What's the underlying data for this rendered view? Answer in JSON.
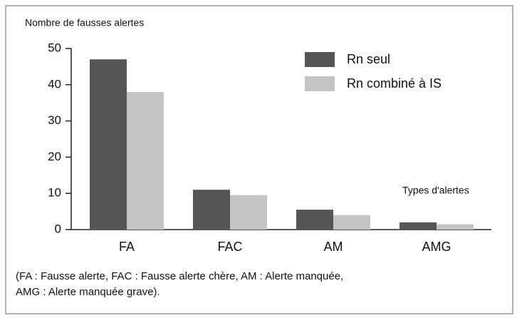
{
  "chart_data": {
    "type": "bar",
    "y_axis_label": "Nombre de fausses alertes",
    "x_axis_label": "Types d'alertes",
    "categories": [
      "FA",
      "FAC",
      "AM",
      "AMG"
    ],
    "series": [
      {
        "name": "Rn seul",
        "color": "#555555",
        "values": [
          47,
          11,
          5.5,
          2
        ]
      },
      {
        "name": "Rn combiné à IS",
        "color": "#c4c4c4",
        "values": [
          38,
          9.5,
          4,
          1.5
        ]
      }
    ],
    "ylim": [
      0,
      50
    ],
    "yticks": [
      0,
      10,
      20,
      30,
      40,
      50
    ],
    "legend": "top-right",
    "notes": [
      "(FA : Fausse alerte, FAC : Fausse alerte chère, AM : Alerte manquée,",
      "AMG : Alerte manquée grave)."
    ]
  }
}
